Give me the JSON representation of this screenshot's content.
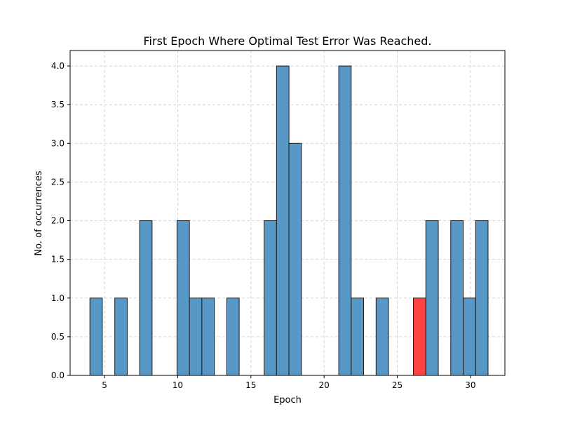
{
  "chart_data": {
    "type": "bar",
    "title": "First Epoch Where Optimal Test Error Was Reached.",
    "xlabel": "Epoch",
    "ylabel": "No. of occurrences",
    "xlim": [
      2.65,
      32.35
    ],
    "ylim": [
      0,
      4.2
    ],
    "xticks": [
      5,
      10,
      15,
      20,
      25,
      30
    ],
    "yticks": [
      0.0,
      0.5,
      1.0,
      1.5,
      2.0,
      2.5,
      3.0,
      3.5,
      4.0
    ],
    "ytick_labels": [
      "0.0",
      "0.5",
      "1.0",
      "1.5",
      "2.0",
      "2.5",
      "3.0",
      "3.5",
      "4.0"
    ],
    "grid": true,
    "bins": [
      {
        "start": 4.0,
        "end": 4.85,
        "count": 1
      },
      {
        "start": 5.7,
        "end": 6.55,
        "count": 1
      },
      {
        "start": 7.4,
        "end": 8.25,
        "count": 2
      },
      {
        "start": 9.95,
        "end": 10.8,
        "count": 2
      },
      {
        "start": 10.8,
        "end": 11.65,
        "count": 1
      },
      {
        "start": 11.65,
        "end": 12.5,
        "count": 1
      },
      {
        "start": 13.35,
        "end": 14.2,
        "count": 1
      },
      {
        "start": 15.9,
        "end": 16.75,
        "count": 2
      },
      {
        "start": 16.75,
        "end": 17.6,
        "count": 4
      },
      {
        "start": 17.6,
        "end": 18.45,
        "count": 3
      },
      {
        "start": 21.0,
        "end": 21.85,
        "count": 4
      },
      {
        "start": 21.85,
        "end": 22.7,
        "count": 1
      },
      {
        "start": 23.55,
        "end": 24.4,
        "count": 1
      },
      {
        "start": 26.1,
        "end": 26.95,
        "count": 1,
        "highlight": true
      },
      {
        "start": 26.95,
        "end": 27.8,
        "count": 2
      },
      {
        "start": 28.65,
        "end": 29.5,
        "count": 2
      },
      {
        "start": 29.5,
        "end": 30.35,
        "count": 1
      },
      {
        "start": 30.35,
        "end": 31.2,
        "count": 2
      }
    ],
    "colors": {
      "bar": "#5798c6",
      "highlight": "#ff4444",
      "edge": "#1a1a1a"
    }
  }
}
